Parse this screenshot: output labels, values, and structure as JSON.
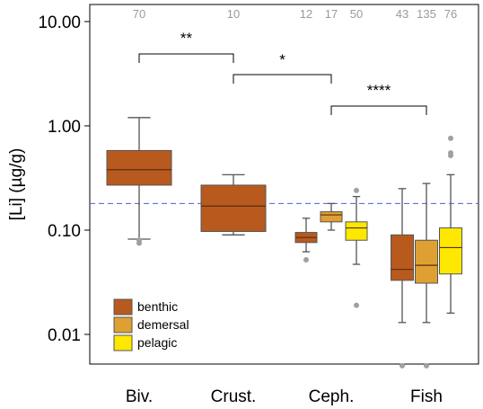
{
  "chart_data": {
    "type": "box",
    "ylabel": "[Li] (µg/g)",
    "yscale": "log",
    "ylim": [
      0.0045,
      14
    ],
    "y_ticks": [
      {
        "value": 10,
        "label": "10.00"
      },
      {
        "value": 1,
        "label": "1.00"
      },
      {
        "value": 0.1,
        "label": "0.10"
      },
      {
        "value": 0.01,
        "label": "0.01"
      }
    ],
    "reference_line": {
      "value": 0.18,
      "color": "#4a5fd8",
      "style": "dashed"
    },
    "categories": [
      "Biv.",
      "Crust.",
      "Ceph.",
      "Fish"
    ],
    "colors": {
      "benthic": "#b85a1e",
      "demersal": "#dea032",
      "pelagic": "#ffe800"
    },
    "legend": {
      "position": "bottom-left",
      "entries": [
        "benthic",
        "demersal",
        "pelagic"
      ]
    },
    "boxes": [
      {
        "category": "Biv.",
        "group": "benthic",
        "n": "70",
        "whislo": 0.082,
        "q1": 0.27,
        "median": 0.38,
        "q3": 0.58,
        "whishi": 1.2,
        "outliers": [
          0.075,
          0.08
        ]
      },
      {
        "category": "Crust.",
        "group": "benthic",
        "n": "10",
        "whislo": 0.09,
        "q1": 0.097,
        "median": 0.17,
        "q3": 0.27,
        "whishi": 0.34,
        "outliers": []
      },
      {
        "category": "Ceph.",
        "group": "benthic",
        "n": "12",
        "whislo": 0.062,
        "q1": 0.076,
        "median": 0.085,
        "q3": 0.095,
        "whishi": 0.13,
        "outliers": [
          0.052
        ]
      },
      {
        "category": "Ceph.",
        "group": "demersal",
        "n": "17",
        "whislo": 0.1,
        "q1": 0.12,
        "median": 0.14,
        "q3": 0.15,
        "whishi": 0.18,
        "outliers": []
      },
      {
        "category": "Ceph.",
        "group": "pelagic",
        "n": "50",
        "whislo": 0.047,
        "q1": 0.08,
        "median": 0.105,
        "q3": 0.12,
        "whishi": 0.21,
        "outliers": [
          0.24,
          0.019
        ]
      },
      {
        "category": "Fish",
        "group": "benthic",
        "n": "43",
        "whislo": 0.013,
        "q1": 0.033,
        "median": 0.042,
        "q3": 0.09,
        "whishi": 0.25,
        "outliers": [
          0.005
        ]
      },
      {
        "category": "Fish",
        "group": "demersal",
        "n": "135",
        "whislo": 0.013,
        "q1": 0.031,
        "median": 0.046,
        "q3": 0.08,
        "whishi": 0.28,
        "outliers": [
          0.005
        ]
      },
      {
        "category": "Fish",
        "group": "pelagic",
        "n": "76",
        "whislo": 0.016,
        "q1": 0.038,
        "median": 0.068,
        "q3": 0.105,
        "whishi": 0.34,
        "outliers": [
          0.52,
          0.55,
          0.76
        ]
      }
    ],
    "significance": [
      {
        "label": "**",
        "from_box": 0,
        "to_box": 1
      },
      {
        "label": "*",
        "from_box": 1,
        "to_box": 2
      },
      {
        "label": "****",
        "from_box": 2,
        "to_box": 5
      }
    ]
  }
}
